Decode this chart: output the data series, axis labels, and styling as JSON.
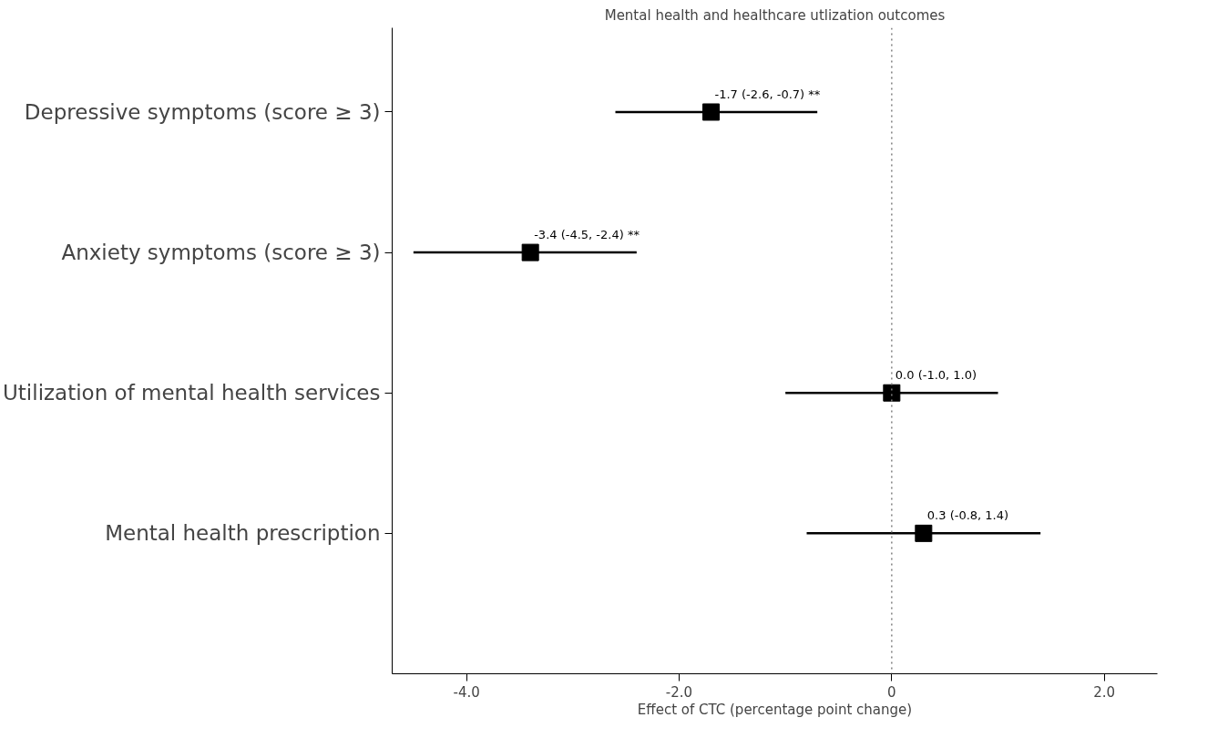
{
  "chart_data": {
    "type": "scatter",
    "orientation": "horizontal",
    "title": "Mental health and healthcare utlization outcomes",
    "xlabel": "Effect of CTC (percentage point change)",
    "categories": [
      "Depressive symptoms (score ≥ 3)",
      "Anxiety symptoms (score ≥ 3)",
      "Utilization of mental health services",
      "Mental health prescription"
    ],
    "values": [
      -1.7,
      -3.4,
      0.0,
      0.3
    ],
    "errors": [
      [
        -2.6,
        -0.7
      ],
      [
        -4.5,
        -2.4
      ],
      [
        -1.0,
        1.0
      ],
      [
        -0.8,
        1.4
      ]
    ],
    "value_labels": [
      "-1.7  (-2.6,  -0.7) **",
      "-3.4  (-4.5,  -2.4) **",
      "0.0  (-1.0,  1.0)",
      "0.3  (-0.8,  1.4)"
    ],
    "color": "#000000",
    "marker": "square",
    "xlim": [
      -4.7,
      2.5
    ],
    "xticks": [
      {
        "value": -4,
        "label": "-4.0"
      },
      {
        "value": -2,
        "label": "-2.0"
      },
      {
        "value": 0,
        "label": "0"
      },
      {
        "value": 2,
        "label": "2.0"
      }
    ],
    "ref_lines": [
      {
        "axis": "x",
        "value": 0,
        "label": null,
        "color": "#808080",
        "line_style": "dotted"
      }
    ]
  }
}
